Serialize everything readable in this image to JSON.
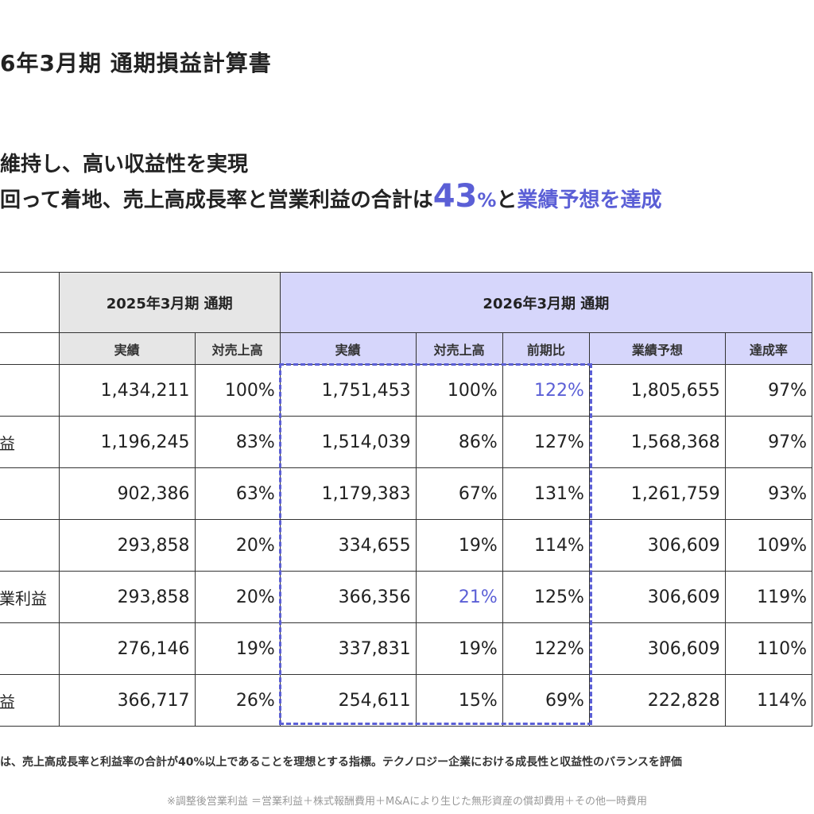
{
  "title": "6年3月期 通期損益計算書",
  "headline": {
    "line1": "維持し、高い収益性を実現",
    "line2_before": "回って着地、売上高成長率と営業利益の合計は",
    "line2_value": "43",
    "line2_pct": "%",
    "line2_mid": "と",
    "line2_accent": "業績予想を達成"
  },
  "colors": {
    "accent": "#5b5fd6",
    "header_2025": "#e6e6e6",
    "header_2026": "#d6d6fb"
  },
  "table": {
    "group_2025": "2025年3月期 通期",
    "group_2026": "2026年3月期 通期",
    "subheaders": [
      "実績",
      "対売上高",
      "実績",
      "対売上高",
      "前期比",
      "業績予想",
      "達成率"
    ],
    "rows": [
      {
        "label": "",
        "cells": [
          "1,434,211",
          "100%",
          "1,751,453",
          "100%",
          "122%",
          "1,805,655",
          "97%"
        ]
      },
      {
        "label": "益",
        "cells": [
          "1,196,245",
          "83%",
          "1,514,039",
          "86%",
          "127%",
          "1,568,368",
          "97%"
        ]
      },
      {
        "label": "",
        "cells": [
          "902,386",
          "63%",
          "1,179,383",
          "67%",
          "131%",
          "1,261,759",
          "93%"
        ]
      },
      {
        "label": "",
        "cells": [
          "293,858",
          "20%",
          "334,655",
          "19%",
          "114%",
          "306,609",
          "109%"
        ]
      },
      {
        "label": "業利益",
        "cells": [
          "293,858",
          "20%",
          "366,356",
          "21%",
          "125%",
          "306,609",
          "119%"
        ]
      },
      {
        "label": "",
        "cells": [
          "276,146",
          "19%",
          "337,831",
          "19%",
          "122%",
          "306,609",
          "110%"
        ]
      },
      {
        "label": "益",
        "cells": [
          "366,717",
          "26%",
          "254,611",
          "15%",
          "69%",
          "222,828",
          "114%"
        ]
      }
    ]
  },
  "note": "は、売上高成長率と利益率の合計が40%以上であることを理想とする指標。テクノロジー企業における成長性と収益性のバランスを評価",
  "footnote": "※調整後営業利益 ＝営業利益＋株式報酬費用＋M&Aにより生じた無形資産の償却費用＋その他一時費用"
}
